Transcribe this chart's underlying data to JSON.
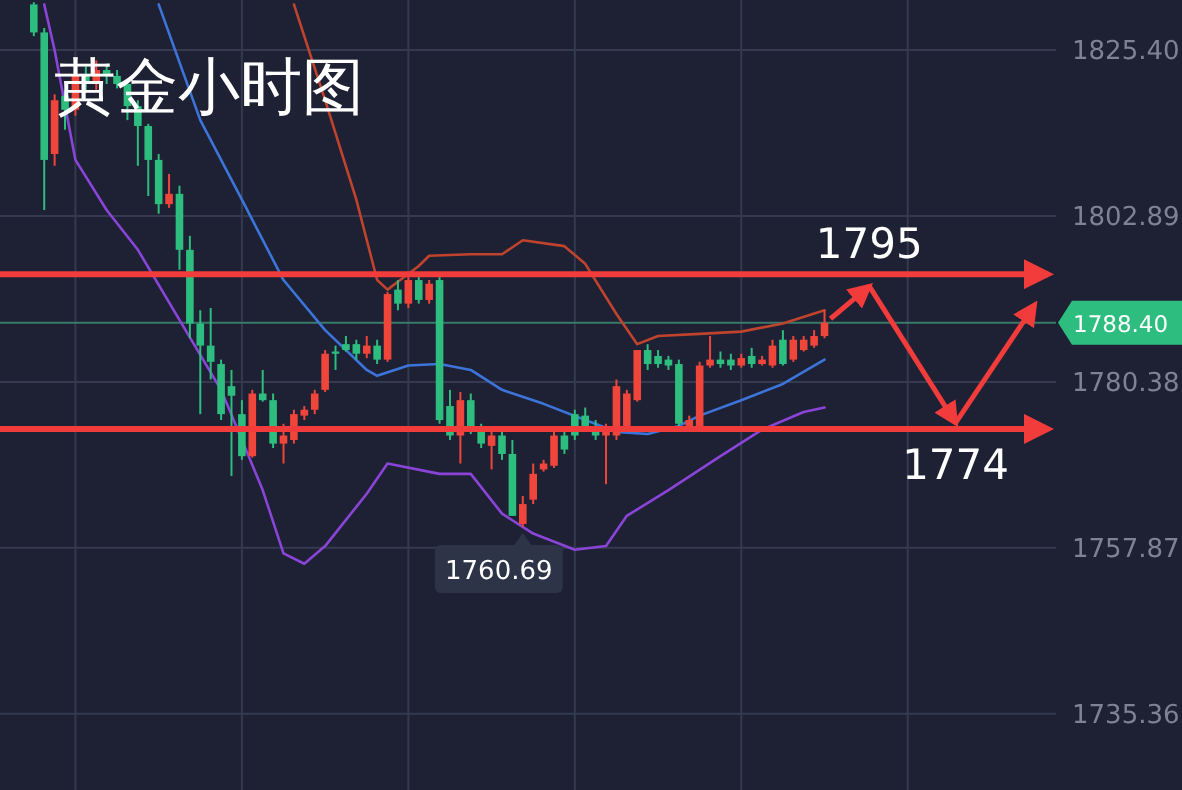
{
  "chart_data": {
    "type": "candlestick",
    "title": "黄金小时图",
    "categories": [
      null,
      null,
      null,
      null,
      null,
      null,
      null,
      null,
      null,
      null,
      null,
      null,
      null,
      null,
      null,
      null,
      null,
      null,
      null,
      null,
      null,
      null,
      null,
      null,
      null,
      null,
      null,
      null,
      null,
      null,
      null,
      null,
      null,
      null,
      null,
      null,
      null,
      null,
      null,
      null,
      null,
      null,
      null,
      null,
      null,
      null,
      null,
      null,
      null,
      null,
      null,
      null,
      null,
      null,
      null,
      null,
      null,
      null,
      null,
      null,
      null,
      null,
      null,
      null,
      null,
      null,
      null,
      null,
      null,
      null,
      null,
      null,
      null,
      null,
      null,
      null,
      null,
      null,
      null,
      null,
      null,
      null,
      null,
      null,
      null,
      null,
      null,
      null,
      null,
      null,
      null,
      null,
      null,
      null,
      null,
      null,
      null,
      null,
      null,
      null,
      null,
      null
    ],
    "series": [
      {
        "type": "candlestick",
        "ohlc": [
          null,
          null,
          null,
          [
            1831.6,
            1831.9,
            1827.3,
            1827.8
          ],
          [
            1827.8,
            1828.4,
            1803.7,
            1810.5
          ],
          [
            1811.3,
            1819.4,
            1809.7,
            1818.6
          ],
          [
            1819.2,
            1820.0,
            1814.6,
            1817.3
          ],
          [
            1817.3,
            1822.7,
            1816.5,
            1821.9
          ],
          [
            1821.9,
            1823.2,
            1820.0,
            1820.8
          ],
          [
            1820.8,
            1824.0,
            1820.0,
            1822.7
          ],
          [
            1822.7,
            1823.5,
            1820.8,
            1821.9
          ],
          [
            1821.9,
            1822.7,
            1820.2,
            1820.8
          ],
          [
            1820.8,
            1821.3,
            1815.9,
            1817.8
          ],
          [
            1817.8,
            1818.6,
            1809.7,
            1815.1
          ],
          [
            1815.1,
            1815.4,
            1805.6,
            1810.5
          ],
          [
            1810.5,
            1811.3,
            1803.2,
            1804.5
          ],
          [
            1804.5,
            1808.6,
            1804.0,
            1805.9
          ],
          [
            1805.9,
            1807.0,
            1795.6,
            1798.3
          ],
          [
            1798.3,
            1800.2,
            1786.3,
            1788.3
          ],
          [
            1788.3,
            1790.1,
            1776.0,
            1785.3
          ],
          [
            1785.3,
            1790.4,
            1780.7,
            1783.1
          ],
          [
            1782.8,
            1783.4,
            1775.2,
            1776.0
          ],
          [
            1779.8,
            1782.0,
            1767.6,
            1778.5
          ],
          [
            1776.0,
            1777.9,
            1769.8,
            1770.3
          ],
          [
            1770.3,
            1779.3,
            1770.1,
            1778.8
          ],
          [
            1778.8,
            1782.0,
            1777.7,
            1777.9
          ],
          [
            1777.9,
            1778.8,
            1771.4,
            1772.0
          ],
          [
            1772.0,
            1774.7,
            1769.3,
            1773.1
          ],
          [
            1772.5,
            1776.6,
            1772.0,
            1776.0
          ],
          [
            1775.8,
            1777.1,
            1775.2,
            1776.6
          ],
          [
            1776.6,
            1779.3,
            1776.0,
            1778.8
          ],
          [
            1779.3,
            1784.7,
            1779.0,
            1784.2
          ],
          [
            1784.5,
            1785.3,
            1782.0,
            1784.2
          ],
          [
            1785.5,
            1786.6,
            1784.5,
            1784.7
          ],
          [
            1785.5,
            1786.1,
            1783.4,
            1784.2
          ],
          [
            1784.2,
            1786.6,
            1783.6,
            1785.3
          ],
          [
            1785.3,
            1786.1,
            1782.8,
            1783.4
          ],
          [
            1783.4,
            1792.6,
            1783.1,
            1792.3
          ],
          [
            1792.9,
            1794.2,
            1790.1,
            1791.0
          ],
          [
            1791.0,
            1794.8,
            1790.4,
            1794.2
          ],
          [
            1794.2,
            1794.8,
            1791.0,
            1791.5
          ],
          [
            1791.5,
            1794.2,
            1791.0,
            1793.7
          ],
          [
            1794.2,
            1794.8,
            1774.7,
            1775.2
          ],
          [
            1777.1,
            1779.3,
            1772.5,
            1773.1
          ],
          [
            1773.1,
            1779.0,
            1769.3,
            1777.9
          ],
          [
            1777.9,
            1778.8,
            1773.3,
            1773.9
          ],
          [
            1773.9,
            1774.7,
            1771.4,
            1772.0
          ],
          [
            1771.7,
            1773.9,
            1768.5,
            1773.1
          ],
          [
            1773.1,
            1773.9,
            1769.8,
            1770.6
          ],
          [
            1770.6,
            1772.5,
            1762.2,
            1762.2
          ],
          [
            1761.1,
            1764.9,
            1760.69,
            1763.8
          ],
          [
            1764.4,
            1769.3,
            1763.8,
            1767.9
          ],
          [
            1768.5,
            1769.8,
            1768.2,
            1769.3
          ],
          [
            1769.0,
            1773.9,
            1768.7,
            1773.1
          ],
          [
            1773.1,
            1773.9,
            1770.6,
            1771.2
          ],
          [
            1776.0,
            1776.6,
            1772.5,
            1773.1
          ],
          [
            1775.8,
            1776.9,
            1774.1,
            1774.4
          ],
          [
            1774.4,
            1775.2,
            1772.5,
            1773.1
          ],
          [
            1773.1,
            1774.7,
            1766.5,
            1773.9
          ],
          [
            1773.1,
            1780.7,
            1772.5,
            1779.8
          ],
          [
            1774.4,
            1779.3,
            1773.9,
            1778.8
          ],
          [
            1777.9,
            1784.7,
            1777.7,
            1784.7
          ],
          [
            1784.7,
            1785.5,
            1782.0,
            1782.8
          ],
          [
            1783.9,
            1784.7,
            1782.3,
            1782.8
          ],
          [
            1783.4,
            1783.9,
            1782.0,
            1782.6
          ],
          [
            1782.8,
            1783.4,
            1774.1,
            1774.7
          ],
          [
            1774.4,
            1775.8,
            1774.1,
            1775.2
          ],
          [
            1774.4,
            1783.1,
            1774.1,
            1782.6
          ],
          [
            1782.6,
            1786.6,
            1782.3,
            1783.4
          ],
          [
            1783.4,
            1784.5,
            1782.3,
            1782.8
          ],
          [
            1783.4,
            1784.2,
            1782.0,
            1782.6
          ],
          [
            1782.6,
            1784.2,
            1782.3,
            1783.6
          ],
          [
            1783.9,
            1785.0,
            1782.3,
            1782.8
          ],
          [
            1782.8,
            1783.9,
            1782.6,
            1783.4
          ],
          [
            1782.6,
            1786.1,
            1782.3,
            1785.3
          ],
          [
            1786.1,
            1787.4,
            1782.6,
            1782.8
          ],
          [
            1783.4,
            1786.6,
            1783.1,
            1786.1
          ],
          [
            1784.7,
            1786.6,
            1784.5,
            1786.1
          ],
          [
            1785.3,
            1787.4,
            1785.0,
            1786.6
          ],
          [
            1786.6,
            1790.1,
            1786.3,
            1788.4
          ],
          null,
          null,
          null,
          null,
          null,
          null,
          null,
          null,
          null,
          null,
          null,
          null,
          null,
          null,
          null,
          null,
          null,
          null,
          null,
          null,
          null,
          null
        ],
        "colors": [
          null,
          null,
          null,
          "#2dbd7e",
          "#2dbd7e",
          "#f0453a",
          "#2dbd7e",
          "#f0453a",
          "#2dbd7e",
          "#f0453a",
          "#2dbd7e",
          "#2dbd7e",
          "#2dbd7e",
          "#2dbd7e",
          "#2dbd7e",
          "#2dbd7e",
          "#f0453a",
          "#2dbd7e",
          "#2dbd7e",
          "#2dbd7e",
          "#2dbd7e",
          "#2dbd7e",
          "#2dbd7e",
          "#2dbd7e",
          "#f0453a",
          "#2dbd7e",
          "#2dbd7e",
          "#f0453a",
          "#f0453a",
          "#f0453a",
          "#f0453a",
          "#f0453a",
          "#2dbd7e",
          "#2dbd7e",
          "#2dbd7e",
          "#f0453a",
          "#2dbd7e",
          "#f0453a",
          "#2dbd7e",
          "#f0453a",
          "#2dbd7e",
          "#f0453a",
          "#2dbd7e",
          "#2dbd7e",
          "#f0453a",
          "#2dbd7e",
          "#2dbd7e",
          "#f0453a",
          "#2dbd7e",
          "#2dbd7e",
          "#f0453a",
          "#f0453a",
          "#f0453a",
          "#f0453a",
          "#2dbd7e",
          "#2dbd7e",
          "#2dbd7e",
          "#2dbd7e",
          "#f0453a",
          "#f0453a",
          "#f0453a",
          "#f0453a",
          "#2dbd7e",
          "#2dbd7e",
          "#2dbd7e",
          "#2dbd7e",
          "#f0453a",
          "#f0453a",
          "#f0453a",
          "#2dbd7e",
          "#2dbd7e",
          "#f0453a",
          "#2dbd7e",
          "#f0453a",
          "#f0453a",
          "#2dbd7e",
          "#f0453a",
          "#f0453a",
          "#f0453a",
          "#f0453a",
          null,
          null,
          null,
          null,
          null,
          null,
          null,
          null,
          null,
          null,
          null,
          null,
          null,
          null,
          null,
          null,
          null,
          null,
          null,
          null,
          null,
          null
        ]
      },
      {
        "type": "line",
        "color": "#c0432e",
        "values": [
          null,
          null,
          null,
          null,
          null,
          null,
          null,
          null,
          null,
          null,
          null,
          null,
          null,
          null,
          null,
          null,
          null,
          null,
          null,
          null,
          null,
          null,
          null,
          null,
          null,
          null,
          null,
          null,
          1831.6,
          null,
          null,
          1818.6,
          null,
          null,
          1805.1,
          null,
          1794.2,
          1792.9,
          null,
          null,
          1796.1,
          1797.5,
          null,
          null,
          null,
          1797.7,
          null,
          null,
          1797.7,
          null,
          1799.6,
          null,
          null,
          null,
          1798.8,
          null,
          1796.4,
          null,
          null,
          1789.6,
          null,
          1785.5,
          null,
          1786.6,
          null,
          null,
          null,
          1786.9,
          null,
          null,
          null,
          1787.2,
          null,
          null,
          null,
          1788.3,
          null,
          null,
          null,
          1790.1,
          null,
          null,
          null,
          null,
          null,
          null,
          null,
          null,
          null,
          null,
          null,
          null,
          null,
          null,
          null,
          null,
          null,
          null,
          null,
          null,
          null,
          null
        ]
      },
      {
        "type": "line",
        "color": "#3c74d9",
        "values": [
          null,
          null,
          null,
          null,
          null,
          null,
          null,
          null,
          null,
          null,
          null,
          null,
          null,
          null,
          null,
          1831.6,
          null,
          null,
          null,
          1815.9,
          null,
          null,
          null,
          1805.1,
          null,
          null,
          null,
          1794.2,
          null,
          null,
          null,
          1787.4,
          null,
          null,
          null,
          1782.0,
          1781.2,
          null,
          null,
          1782.6,
          null,
          null,
          1782.8,
          null,
          null,
          1782.0,
          null,
          null,
          1779.3,
          null,
          null,
          null,
          1777.4,
          null,
          null,
          null,
          1775.2,
          null,
          null,
          1773.6,
          null,
          null,
          1773.3,
          null,
          null,
          1774.4,
          null,
          1775.8,
          null,
          null,
          null,
          1777.9,
          null,
          null,
          null,
          1780.1,
          null,
          null,
          null,
          1783.4,
          null,
          null,
          null,
          null,
          null,
          null,
          null,
          null,
          null,
          null,
          null,
          null,
          null,
          null,
          null,
          null,
          null,
          null,
          null,
          null,
          null,
          null
        ]
      },
      {
        "type": "line",
        "color": "#8b44d8",
        "values": [
          null,
          null,
          null,
          null,
          1831.6,
          1825.4,
          null,
          1810.5,
          null,
          null,
          1803.7,
          null,
          null,
          1798.3,
          null,
          null,
          null,
          1788.8,
          null,
          null,
          null,
          1779.3,
          null,
          null,
          null,
          1765.7,
          null,
          1757.1,
          null,
          1755.7,
          null,
          1758.1,
          null,
          null,
          null,
          1765.2,
          null,
          1769.3,
          null,
          null,
          null,
          null,
          1767.9,
          null,
          null,
          1767.9,
          null,
          null,
          1762.5,
          null,
          null,
          1759.8,
          null,
          null,
          null,
          1757.6,
          null,
          null,
          1758.1,
          null,
          1762.2,
          null,
          null,
          null,
          1765.7,
          null,
          null,
          null,
          null,
          1770.3,
          null,
          null,
          null,
          1773.9,
          null,
          null,
          null,
          1776.3,
          null,
          1776.9,
          null,
          null,
          null,
          null,
          null,
          null,
          null,
          null,
          null,
          null,
          null,
          null,
          null,
          null,
          null,
          null,
          null,
          null,
          null,
          null,
          null,
          null
        ]
      }
    ],
    "ylim": [
      1725.0,
      1832.2
    ],
    "yticks": [
      {
        "value": 1735.36,
        "label": "1735.36"
      },
      {
        "value": 1757.87,
        "label": "1757.87"
      },
      {
        "value": 1780.38,
        "label": "1780.38"
      },
      {
        "value": 1802.89,
        "label": "1802.89"
      },
      {
        "value": 1825.4,
        "label": "1825.40"
      }
    ],
    "ref_lines": [
      {
        "axis": "y",
        "value": 1795,
        "label": "1795",
        "color": "#f23b3b"
      },
      {
        "axis": "y",
        "value": 1774,
        "label": "1774",
        "color": "#f23b3b"
      },
      {
        "axis": "y",
        "value": 1788.4,
        "color": "#3a7a6a"
      }
    ],
    "annotations": [
      "1760.69",
      "1788.40"
    ],
    "grid": true,
    "tick_labels": "y"
  }
}
